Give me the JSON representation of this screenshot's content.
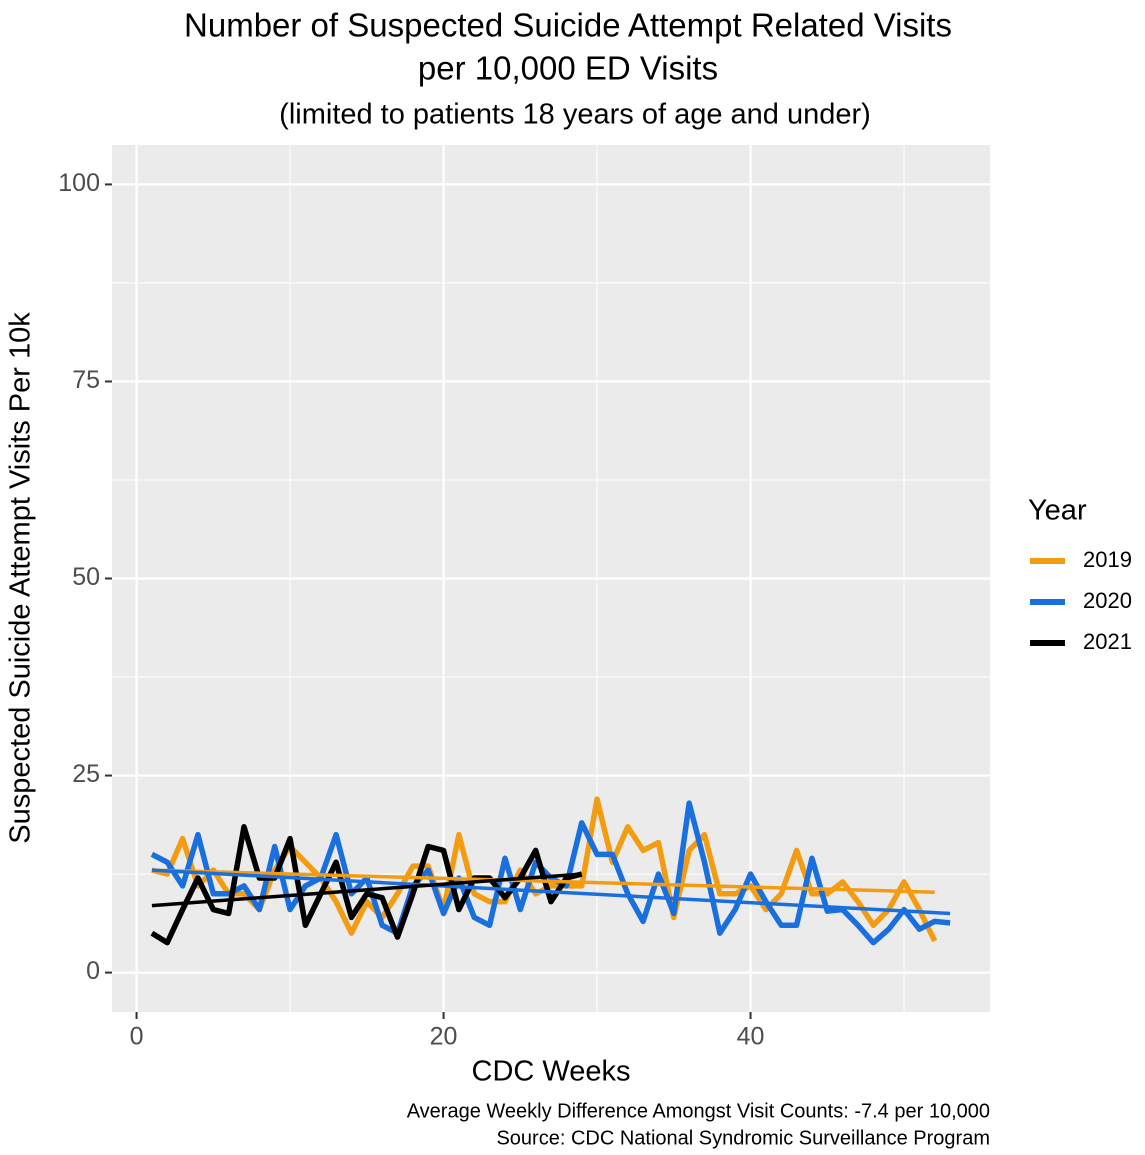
{
  "chart_data": {
    "type": "line",
    "title": [
      "Number of Suspected Suicide Attempt Related Visits",
      "per 10,000 ED Visits"
    ],
    "subtitle": "(limited to patients 18 years of age and under)",
    "x_label": "CDC Weeks",
    "y_label": "Suspected Suicide Attempt Visits Per 10k",
    "caption": [
      "Average Weekly Difference Amongst Visit Counts: -7.4 per 10,000",
      "Source: CDC National Syndromic Surveillance Program"
    ],
    "legend_title": "Year",
    "legend_position": "right",
    "grid": true,
    "xlim": [
      -1.6,
      55.6
    ],
    "xticks": [
      0,
      20,
      40
    ],
    "ylim": [
      -5,
      105
    ],
    "yticks": [
      0,
      25,
      50,
      75,
      100
    ],
    "series": [
      {
        "name": "2019",
        "color": "#f39c12",
        "x": [
          1,
          2,
          3,
          4,
          5,
          6,
          7,
          8,
          9,
          10,
          11,
          12,
          13,
          14,
          15,
          16,
          17,
          18,
          19,
          20,
          21,
          22,
          23,
          24,
          25,
          26,
          27,
          28,
          29,
          30,
          31,
          32,
          33,
          34,
          35,
          36,
          37,
          38,
          39,
          40,
          41,
          42,
          43,
          44,
          45,
          46,
          47,
          48,
          49,
          50,
          51,
          52
        ],
        "values": [
          13,
          12.5,
          17,
          11,
          13,
          10,
          10,
          8,
          13,
          16,
          14,
          12,
          9,
          5,
          9,
          7,
          10,
          13.5,
          13.5,
          8,
          17.5,
          10,
          9,
          9,
          13,
          10,
          11,
          11,
          11,
          22,
          14,
          18.5,
          15.5,
          16.5,
          7,
          15.5,
          17.5,
          10,
          10,
          11,
          8,
          10,
          15.5,
          10,
          10,
          11.5,
          9,
          6,
          8,
          11.5,
          8,
          4
        ]
      },
      {
        "name": "2020",
        "color": "#1a6fdf",
        "x": [
          1,
          2,
          3,
          4,
          5,
          6,
          7,
          8,
          9,
          10,
          11,
          12,
          13,
          14,
          15,
          16,
          17,
          18,
          19,
          20,
          21,
          22,
          23,
          24,
          25,
          26,
          27,
          28,
          29,
          30,
          31,
          32,
          33,
          34,
          35,
          36,
          37,
          38,
          39,
          40,
          41,
          42,
          43,
          44,
          45,
          46,
          47,
          48,
          49,
          50,
          51,
          52,
          53
        ],
        "values": [
          15,
          14,
          11,
          17.5,
          10,
          10,
          11,
          8,
          16,
          8,
          11,
          12,
          17.5,
          10,
          12,
          6,
          5,
          11,
          13,
          7.5,
          12,
          7,
          6,
          14.5,
          8,
          14,
          12,
          11,
          19,
          15,
          15,
          10,
          6.5,
          12.5,
          7.5,
          21.5,
          14,
          5,
          8,
          12.5,
          9,
          6,
          6,
          14.5,
          7.8,
          8,
          6,
          3.8,
          5.5,
          8,
          5.5,
          6.5,
          6.3
        ]
      },
      {
        "name": "2021",
        "color": "#000000",
        "x": [
          1,
          2,
          3,
          4,
          5,
          6,
          7,
          8,
          9,
          10,
          11,
          12,
          13,
          14,
          15,
          16,
          17,
          18,
          19,
          20,
          21,
          22,
          23,
          24,
          25,
          26,
          27,
          28,
          29
        ],
        "values": [
          5,
          3.8,
          8,
          12,
          8,
          7.5,
          18.5,
          12,
          12,
          17,
          6,
          10,
          14,
          7,
          10,
          9.5,
          4.5,
          10,
          16,
          15.5,
          8,
          12,
          12,
          9.5,
          12,
          15.5,
          9,
          12,
          12.5
        ]
      }
    ],
    "trend_lines": [
      {
        "color": "#f39c12",
        "x": [
          1,
          52
        ],
        "values": [
          13,
          10.2
        ]
      },
      {
        "color": "#1a6fdf",
        "x": [
          1,
          53
        ],
        "values": [
          13,
          7.5
        ]
      },
      {
        "color": "#000000",
        "x": [
          1,
          29
        ],
        "values": [
          8.5,
          12.5
        ]
      }
    ]
  }
}
